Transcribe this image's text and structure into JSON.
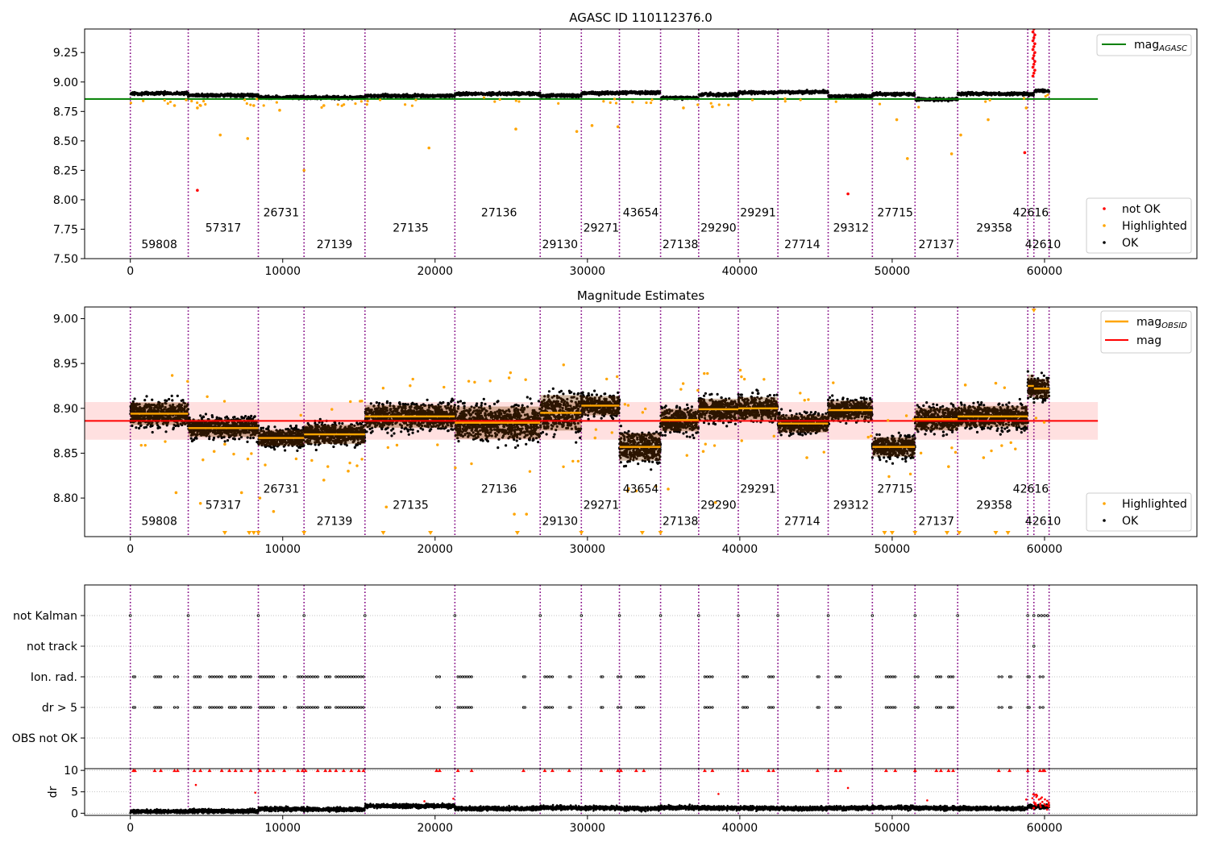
{
  "chart_data": [
    {
      "type": "scatter",
      "title": "AGASC ID 110112376.0",
      "xlabel": "",
      "ylabel": "",
      "xlim": [
        -3000,
        70000
      ],
      "ylim": [
        7.5,
        9.45
      ],
      "grid": false,
      "xticks": [
        "0",
        "10000",
        "20000",
        "30000",
        "40000",
        "50000",
        "60000"
      ],
      "xtick_values": [
        0,
        10000,
        20000,
        30000,
        40000,
        50000,
        60000
      ],
      "yticks": [
        "7.50",
        "7.75",
        "8.00",
        "8.25",
        "8.50",
        "8.75",
        "9.00",
        "9.25"
      ],
      "ytick_values": [
        7.5,
        7.75,
        8.0,
        8.25,
        8.5,
        8.75,
        9.0,
        9.25
      ],
      "line_legend": [
        {
          "label": "mag",
          "sub": "AGASC",
          "color": "#008000"
        }
      ],
      "line_legend_placement": "top-right",
      "point_legend": [
        {
          "label": "not OK",
          "color": "#ff0000"
        },
        {
          "label": "Highlighted",
          "color": "#ffa500"
        },
        {
          "label": "OK",
          "color": "#000000"
        }
      ],
      "point_legend_placement": "bottom-right",
      "mag_agasc": 8.856,
      "mag_agasc_xrange": [
        -3000,
        63500
      ],
      "obsid_boundaries": [
        0,
        3800,
        8400,
        11400,
        15400,
        21300,
        26900,
        29600,
        32100,
        34800,
        37300,
        39900,
        42500,
        45800,
        48700,
        51500,
        54300,
        58900,
        59300,
        60300
      ],
      "obsids": [
        {
          "label": "59808",
          "x": 1900,
          "y": 7.59
        },
        {
          "label": "57317",
          "x": 6100,
          "y": 7.73
        },
        {
          "label": "26731",
          "x": 9900,
          "y": 7.86
        },
        {
          "label": "27139",
          "x": 13400,
          "y": 7.59
        },
        {
          "label": "27135",
          "x": 18400,
          "y": 7.73
        },
        {
          "label": "27136",
          "x": 24200,
          "y": 7.86
        },
        {
          "label": "29130",
          "x": 28200,
          "y": 7.59
        },
        {
          "label": "29271",
          "x": 30900,
          "y": 7.73
        },
        {
          "label": "43654",
          "x": 33500,
          "y": 7.86
        },
        {
          "label": "27138",
          "x": 36100,
          "y": 7.59
        },
        {
          "label": "29290",
          "x": 38600,
          "y": 7.73
        },
        {
          "label": "29291",
          "x": 41200,
          "y": 7.86
        },
        {
          "label": "27714",
          "x": 44100,
          "y": 7.59
        },
        {
          "label": "29312",
          "x": 47300,
          "y": 7.73
        },
        {
          "label": "27715",
          "x": 50200,
          "y": 7.86
        },
        {
          "label": "27137",
          "x": 52900,
          "y": 7.59
        },
        {
          "label": "29358",
          "x": 56700,
          "y": 7.73
        },
        {
          "label": "42616",
          "x": 59100,
          "y": 7.86
        },
        {
          "label": "42610",
          "x": 59900,
          "y": 7.59
        }
      ],
      "segment_levels": [
        8.903,
        8.887,
        8.87,
        8.868,
        8.882,
        8.9,
        8.885,
        8.905,
        8.91,
        8.865,
        8.893,
        8.91,
        8.915,
        8.878,
        8.897,
        8.852,
        8.9,
        8.895,
        8.925
      ],
      "outliers_highlighted": [
        [
          2900,
          8.8
        ],
        [
          4400,
          8.78
        ],
        [
          5900,
          8.55
        ],
        [
          7700,
          8.52
        ],
        [
          8100,
          8.8
        ],
        [
          9800,
          8.76
        ],
        [
          11400,
          8.25
        ],
        [
          12700,
          8.8
        ],
        [
          19600,
          8.44
        ],
        [
          25300,
          8.6
        ],
        [
          29300,
          8.58
        ],
        [
          30300,
          8.63
        ],
        [
          32000,
          8.62
        ],
        [
          36300,
          8.78
        ],
        [
          38200,
          8.79
        ],
        [
          50300,
          8.68
        ],
        [
          51000,
          8.35
        ],
        [
          53900,
          8.39
        ],
        [
          54500,
          8.55
        ],
        [
          56300,
          8.68
        ],
        [
          58800,
          8.78
        ]
      ],
      "outliers_notok": [
        [
          4400,
          8.08
        ],
        [
          47100,
          8.05
        ],
        [
          58700,
          8.4
        ]
      ]
    },
    {
      "type": "scatter",
      "title": "Magnitude Estimates",
      "xlabel": "",
      "ylabel": "",
      "xlim": [
        -3000,
        70000
      ],
      "ylim": [
        8.757,
        9.013
      ],
      "grid": false,
      "xticks": [
        "0",
        "10000",
        "20000",
        "30000",
        "40000",
        "50000",
        "60000"
      ],
      "xtick_values": [
        0,
        10000,
        20000,
        30000,
        40000,
        50000,
        60000
      ],
      "yticks": [
        "8.80",
        "8.85",
        "8.90",
        "8.95",
        "9.00"
      ],
      "ytick_values": [
        8.8,
        8.85,
        8.9,
        8.95,
        9.0
      ],
      "line_legend": [
        {
          "label": "mag",
          "sub": "OBSID",
          "color": "#ffa500"
        },
        {
          "label": "mag",
          "sub": "",
          "color": "#ff0000"
        }
      ],
      "line_legend_placement": "top-right",
      "point_legend": [
        {
          "label": "Highlighted",
          "color": "#ffa500"
        },
        {
          "label": "OK",
          "color": "#000000"
        }
      ],
      "point_legend_placement": "bottom-right",
      "mag": 8.886,
      "mag_band": [
        8.865,
        8.907
      ],
      "mag_xrange": [
        -3000,
        63500
      ],
      "obsid_boundaries": [
        0,
        3800,
        8400,
        11400,
        15400,
        21300,
        26900,
        29600,
        32100,
        34800,
        37300,
        39900,
        42500,
        45800,
        48700,
        51500,
        54300,
        58900,
        59300,
        60300
      ],
      "obsids": [
        {
          "label": "59808",
          "x": 1900,
          "y": 8.77
        },
        {
          "label": "57317",
          "x": 6100,
          "y": 8.788
        },
        {
          "label": "26731",
          "x": 9900,
          "y": 8.806
        },
        {
          "label": "27139",
          "x": 13400,
          "y": 8.77
        },
        {
          "label": "27135",
          "x": 18400,
          "y": 8.788
        },
        {
          "label": "27136",
          "x": 24200,
          "y": 8.806
        },
        {
          "label": "29130",
          "x": 28200,
          "y": 8.77
        },
        {
          "label": "29271",
          "x": 30900,
          "y": 8.788
        },
        {
          "label": "43654",
          "x": 33500,
          "y": 8.806
        },
        {
          "label": "27138",
          "x": 36100,
          "y": 8.77
        },
        {
          "label": "29290",
          "x": 38600,
          "y": 8.788
        },
        {
          "label": "29291",
          "x": 41200,
          "y": 8.806
        },
        {
          "label": "27714",
          "x": 44100,
          "y": 8.77
        },
        {
          "label": "29312",
          "x": 47300,
          "y": 8.788
        },
        {
          "label": "27715",
          "x": 50200,
          "y": 8.806
        },
        {
          "label": "27137",
          "x": 52900,
          "y": 8.77
        },
        {
          "label": "29358",
          "x": 56700,
          "y": 8.788
        },
        {
          "label": "42616",
          "x": 59100,
          "y": 8.806
        },
        {
          "label": "42610",
          "x": 59900,
          "y": 8.77
        }
      ],
      "mag_obsid": [
        8.894,
        8.878,
        8.867,
        8.871,
        8.891,
        8.884,
        8.895,
        8.903,
        8.857,
        8.887,
        8.899,
        8.9,
        8.883,
        8.898,
        8.857,
        8.888,
        8.891,
        8.925,
        8.922
      ],
      "segment_spread": [
        0.014,
        0.011,
        0.01,
        0.012,
        0.014,
        0.02,
        0.022,
        0.012,
        0.017,
        0.014,
        0.013,
        0.014,
        0.011,
        0.012,
        0.012,
        0.014,
        0.013,
        0.014,
        0.012
      ],
      "outliers_highlighted": [
        [
          3000,
          8.806
        ],
        [
          4600,
          8.794
        ],
        [
          5500,
          8.852
        ],
        [
          6200,
          8.86
        ],
        [
          7300,
          8.806
        ],
        [
          8500,
          8.8
        ],
        [
          9400,
          8.785
        ],
        [
          12700,
          8.82
        ],
        [
          14300,
          8.83
        ],
        [
          16800,
          8.79
        ],
        [
          25200,
          8.782
        ],
        [
          26000,
          8.782
        ],
        [
          30500,
          8.867
        ],
        [
          33200,
          8.808
        ],
        [
          35300,
          8.81
        ],
        [
          37600,
          8.852
        ],
        [
          38400,
          8.795
        ],
        [
          44400,
          8.845
        ],
        [
          53700,
          8.835
        ],
        [
          54800,
          8.926
        ],
        [
          56000,
          8.845
        ],
        [
          56800,
          8.928
        ]
      ],
      "clipped_x": [
        6200,
        7800,
        8100,
        8400,
        11400,
        16600,
        19700,
        25400,
        29600,
        33600,
        34800,
        49500,
        50000,
        51500,
        53600,
        54400,
        56800,
        57600
      ]
    },
    {
      "type": "scatter",
      "title": "",
      "xlabel": "",
      "ylabel": "",
      "xlim": [
        -3000,
        70000
      ],
      "grid": true,
      "categories": [
        "not Kalman",
        "not track",
        "Ion. rad.",
        "dr > 5",
        "OBS not OK"
      ],
      "obsid_boundaries": [
        0,
        3800,
        8400,
        11400,
        15400,
        21300,
        26900,
        29600,
        32100,
        34800,
        37300,
        39900,
        42500,
        45800,
        48700,
        51500,
        54300,
        58900,
        59300,
        60300
      ],
      "not_kalman_x": [
        0,
        3800,
        8400,
        11400,
        15400,
        21300,
        26900,
        29600,
        32100,
        34800,
        37300,
        39900,
        42500,
        45800,
        48700,
        51500,
        54300,
        58900,
        59300,
        59600,
        59800,
        60000,
        60200
      ],
      "not_track_x": [
        59300
      ],
      "ion_rad_clusters": [
        [
          200,
          300
        ],
        [
          1600,
          2000
        ],
        [
          2900,
          3100
        ],
        [
          4200,
          4600
        ],
        [
          5200,
          6000
        ],
        [
          6500,
          6900
        ],
        [
          7300,
          7900
        ],
        [
          8500,
          9400
        ],
        [
          10100,
          10200
        ],
        [
          11000,
          11300
        ],
        [
          11500,
          12300
        ],
        [
          12800,
          13100
        ],
        [
          13500,
          15300
        ],
        [
          20100,
          20300
        ],
        [
          21500,
          22400
        ],
        [
          25800,
          25900
        ],
        [
          27200,
          27700
        ],
        [
          28800,
          28900
        ],
        [
          30900,
          31000
        ],
        [
          32000,
          32200
        ],
        [
          33200,
          33700
        ],
        [
          37700,
          38200
        ],
        [
          40200,
          40500
        ],
        [
          41900,
          42200
        ],
        [
          45100,
          45200
        ],
        [
          46300,
          46600
        ],
        [
          49600,
          50200
        ],
        [
          51500,
          51700
        ],
        [
          52900,
          53200
        ],
        [
          53700,
          54000
        ],
        [
          57000,
          57200
        ],
        [
          57700,
          57800
        ],
        [
          58900,
          59000
        ],
        [
          59700,
          59900
        ]
      ],
      "dr_gt5_clusters": [
        [
          200,
          300
        ],
        [
          1600,
          2000
        ],
        [
          2900,
          3100
        ],
        [
          4200,
          4600
        ],
        [
          5200,
          6000
        ],
        [
          6500,
          6900
        ],
        [
          7300,
          7900
        ],
        [
          8500,
          9400
        ],
        [
          10100,
          10200
        ],
        [
          11000,
          11300
        ],
        [
          11500,
          12300
        ],
        [
          12800,
          13100
        ],
        [
          13500,
          15300
        ],
        [
          20100,
          20300
        ],
        [
          21500,
          22400
        ],
        [
          25800,
          25900
        ],
        [
          27200,
          27700
        ],
        [
          28800,
          28900
        ],
        [
          30900,
          31000
        ],
        [
          32000,
          32200
        ],
        [
          33200,
          33700
        ],
        [
          37700,
          38200
        ],
        [
          40200,
          40500
        ],
        [
          41900,
          42200
        ],
        [
          45100,
          45200
        ],
        [
          46300,
          46600
        ],
        [
          49600,
          50200
        ],
        [
          51500,
          51700
        ],
        [
          52900,
          53200
        ],
        [
          53700,
          54000
        ],
        [
          57000,
          57200
        ],
        [
          57700,
          57800
        ],
        [
          58900,
          59000
        ],
        [
          59700,
          59900
        ]
      ]
    },
    {
      "type": "scatter",
      "title": "",
      "xlabel": "",
      "ylabel": "dr",
      "xlim": [
        -3000,
        70000
      ],
      "ylim": [
        -0.5,
        10.4
      ],
      "grid": true,
      "xticks": [
        "0",
        "10000",
        "20000",
        "30000",
        "40000",
        "50000",
        "60000"
      ],
      "xtick_values": [
        0,
        10000,
        20000,
        30000,
        40000,
        50000,
        60000
      ],
      "yticks": [
        "0",
        "5",
        "10"
      ],
      "ytick_values": [
        0,
        5,
        10
      ],
      "obsid_boundaries": [
        0,
        3800,
        8400,
        11400,
        15400,
        21300,
        26900,
        29600,
        32100,
        34800,
        37300,
        39900,
        42500,
        45800,
        48700,
        51500,
        54300,
        58900,
        59300,
        60300
      ],
      "dr_level_by_segment": [
        0.4,
        0.5,
        1.0,
        0.9,
        1.7,
        1.1,
        1.3,
        1.2,
        1.1,
        1.3,
        1.2,
        1.2,
        1.1,
        1.2,
        1.3,
        1.2,
        1.1,
        1.6,
        1.5
      ],
      "clipped_x": [
        200,
        300,
        1600,
        2000,
        2900,
        3100,
        4200,
        4600,
        5200,
        6000,
        6500,
        6900,
        7300,
        7900,
        8500,
        9000,
        9400,
        10100,
        11000,
        11300,
        11500,
        12300,
        12800,
        13100,
        13500,
        14000,
        14500,
        15000,
        15300,
        20100,
        20300,
        21500,
        22400,
        25800,
        27200,
        27700,
        28800,
        30900,
        32000,
        32200,
        33200,
        33700,
        37700,
        38200,
        40200,
        40500,
        41900,
        42200,
        45100,
        46300,
        46600,
        49600,
        50200,
        51500,
        52900,
        53200,
        53700,
        54000,
        57000,
        57700,
        58900,
        59700,
        59900,
        60000
      ],
      "red_high_points": [
        [
          4300,
          6.6
        ],
        [
          8200,
          4.8
        ],
        [
          19300,
          2.8
        ],
        [
          21200,
          3.4
        ],
        [
          38600,
          4.5
        ],
        [
          47100,
          5.9
        ],
        [
          52300,
          3.0
        ],
        [
          58800,
          3.2
        ]
      ]
    }
  ]
}
